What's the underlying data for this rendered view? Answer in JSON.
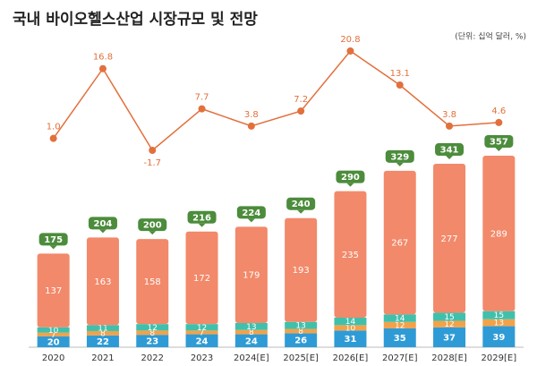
{
  "chart_data": {
    "type": "bar",
    "stacked": true,
    "title": "국내 바이오헬스산업 시장규모 및 전망",
    "subtitle": "(단위: 십억 달러, %)",
    "categories": [
      "2020",
      "2021",
      "2022",
      "2023",
      "2024[E]",
      "2025[E]",
      "2026[E]",
      "2027[E]",
      "2028[E]",
      "2029[E]"
    ],
    "series": [
      {
        "type": "bar",
        "color": "#2e9bd6",
        "values": [
          20,
          22,
          23,
          24,
          24,
          26,
          31,
          35,
          37,
          39
        ]
      },
      {
        "type": "bar",
        "color": "#f2a24a",
        "values": [
          7,
          8,
          8,
          7,
          8,
          8,
          10,
          12,
          12,
          13
        ]
      },
      {
        "type": "bar",
        "color": "#40c0ac",
        "values": [
          10,
          11,
          12,
          12,
          13,
          13,
          14,
          14,
          15,
          15
        ]
      },
      {
        "type": "bar",
        "color": "#f2896a",
        "values": [
          137,
          163,
          158,
          172,
          179,
          193,
          235,
          267,
          277,
          289
        ]
      },
      {
        "type": "line",
        "color": "#e2703c",
        "values": [
          1.0,
          16.8,
          -1.7,
          7.7,
          3.8,
          7.2,
          20.8,
          13.1,
          3.8,
          4.6
        ],
        "value_labels": [
          "1.0",
          "16.8",
          "-1.7",
          "7.7",
          "3.8",
          "7.2",
          "20.8",
          "13.1",
          "3.8",
          "4.6"
        ]
      }
    ],
    "totals": [
      175,
      204,
      200,
      216,
      224,
      240,
      290,
      329,
      341,
      357
    ],
    "total_color": "#4c8c3c"
  }
}
